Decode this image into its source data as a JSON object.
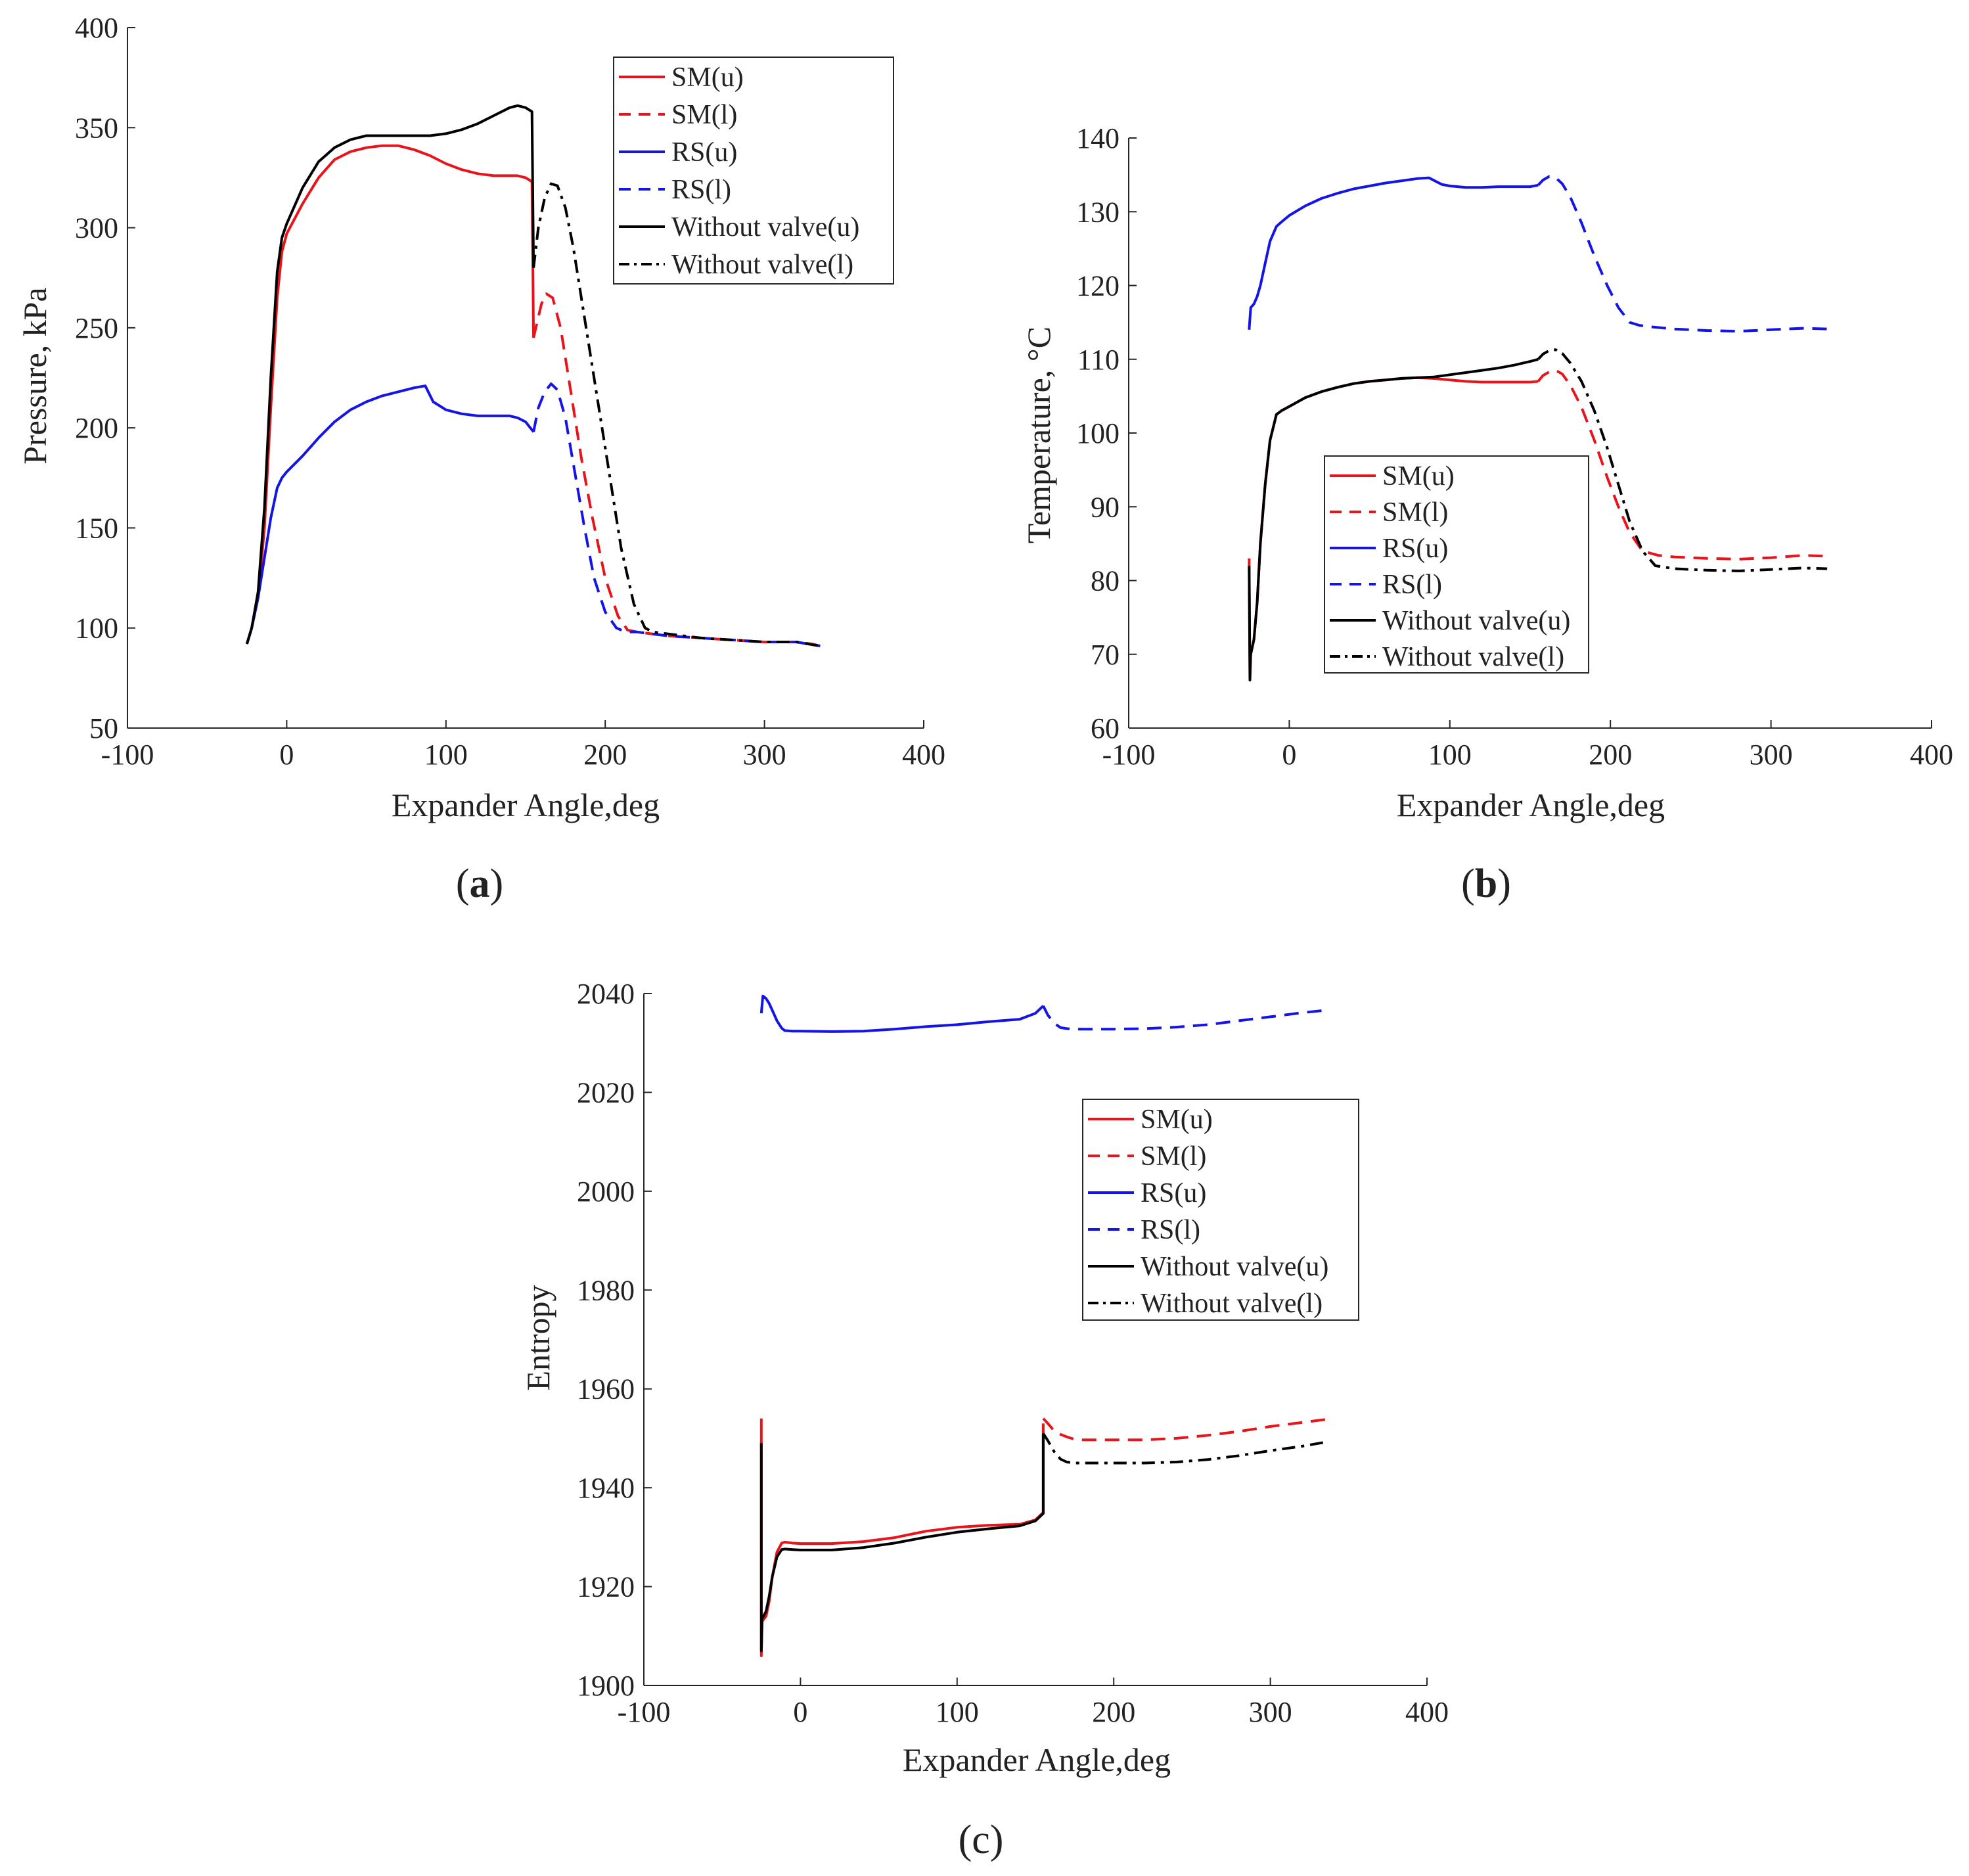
{
  "colors": {
    "SM": "#e8141b",
    "RS": "#1414e6",
    "WV": "#000000",
    "axis": "#262626"
  },
  "legend_entries": [
    {
      "name": "SM(u)",
      "color": "#e8141b",
      "dash": "solid"
    },
    {
      "name": "SM(l)",
      "color": "#e8141b",
      "dash": "dashed"
    },
    {
      "name": "RS(u)",
      "color": "#1414e6",
      "dash": "solid"
    },
    {
      "name": "RS(l)",
      "color": "#1414e6",
      "dash": "dashed"
    },
    {
      "name": "Without valve(u)",
      "color": "#000000",
      "dash": "solid"
    },
    {
      "name": "Without valve(l)",
      "color": "#000000",
      "dash": "dashdot"
    }
  ],
  "chart_data": [
    {
      "id": "a",
      "type": "line",
      "caption": "(a)",
      "caption_letter": "a",
      "xlabel": "Expander Angle,deg",
      "ylabel": "Pressure, kPa",
      "xlim": [
        -100,
        400
      ],
      "ylim": [
        50,
        400
      ],
      "xticks": [
        -100,
        0,
        100,
        200,
        300,
        400
      ],
      "yticks": [
        50,
        100,
        150,
        200,
        250,
        300,
        350,
        400
      ],
      "legend_position": "top-right",
      "series": [
        {
          "name": "SM(u)",
          "color": "#e8141b",
          "dash": "solid",
          "x": [
            -25,
            -22,
            -18,
            -14,
            -10,
            -6,
            -3,
            0,
            10,
            20,
            30,
            40,
            50,
            60,
            70,
            80,
            90,
            100,
            110,
            120,
            130,
            140,
            145,
            150,
            154,
            155
          ],
          "y": [
            92,
            100,
            115,
            150,
            210,
            265,
            288,
            297,
            312,
            325,
            334,
            338,
            340,
            341,
            341,
            339,
            336,
            332,
            329,
            327,
            326,
            326,
            326,
            325,
            323,
            245
          ]
        },
        {
          "name": "SM(l)",
          "color": "#e8141b",
          "dash": "dashed",
          "x": [
            155,
            157,
            160,
            163,
            167,
            172,
            178,
            185,
            192,
            200,
            208,
            214,
            220,
            230,
            240,
            260,
            280,
            300,
            320,
            330,
            335
          ],
          "y": [
            245,
            252,
            262,
            267,
            265,
            250,
            220,
            185,
            155,
            125,
            106,
            99,
            98,
            97,
            96,
            95,
            94,
            93,
            93,
            92,
            91
          ]
        },
        {
          "name": "RS(u)",
          "color": "#1414e6",
          "dash": "solid",
          "x": [
            -25,
            -22,
            -18,
            -14,
            -10,
            -6,
            -3,
            0,
            10,
            20,
            30,
            40,
            50,
            60,
            70,
            80,
            87,
            92,
            100,
            110,
            120,
            130,
            140,
            145,
            150,
            155
          ],
          "y": [
            92,
            100,
            115,
            135,
            155,
            170,
            175,
            178,
            186,
            195,
            203,
            209,
            213,
            216,
            218,
            220,
            221,
            213,
            209,
            207,
            206,
            206,
            206,
            205,
            203,
            198
          ]
        },
        {
          "name": "RS(l)",
          "color": "#1414e6",
          "dash": "dashed",
          "x": [
            155,
            158,
            162,
            166,
            170,
            175,
            180,
            187,
            193,
            200,
            207,
            213,
            220,
            230,
            240,
            260,
            280,
            300,
            320,
            335
          ],
          "y": [
            198,
            210,
            218,
            222,
            219,
            205,
            182,
            150,
            125,
            108,
            100,
            98,
            98,
            97,
            96,
            95,
            94,
            93,
            93,
            91
          ]
        },
        {
          "name": "Without valve(u)",
          "color": "#000000",
          "dash": "solid",
          "x": [
            -25,
            -22,
            -18,
            -14,
            -10,
            -6,
            -3,
            0,
            10,
            20,
            30,
            40,
            50,
            60,
            70,
            80,
            90,
            100,
            110,
            120,
            130,
            140,
            145,
            150,
            154,
            155
          ],
          "y": [
            92,
            100,
            118,
            160,
            225,
            278,
            295,
            302,
            320,
            333,
            340,
            344,
            346,
            346,
            346,
            346,
            346,
            347,
            349,
            352,
            356,
            360,
            361,
            360,
            358,
            280
          ]
        },
        {
          "name": "Without valve(l)",
          "color": "#000000",
          "dash": "dashdot",
          "x": [
            155,
            158,
            162,
            166,
            170,
            175,
            180,
            187,
            195,
            203,
            210,
            218,
            225,
            230,
            240,
            260,
            280,
            300,
            320,
            335
          ],
          "y": [
            280,
            300,
            315,
            322,
            321,
            310,
            290,
            255,
            215,
            175,
            140,
            112,
            100,
            98,
            97,
            95,
            94,
            93,
            93,
            91
          ]
        }
      ]
    },
    {
      "id": "b",
      "type": "line",
      "caption": "(b)",
      "caption_letter": "b",
      "xlabel": "Expander Angle,deg",
      "ylabel": "Temperature, °C",
      "xlim": [
        -100,
        400
      ],
      "ylim": [
        60,
        140
      ],
      "xticks": [
        -100,
        0,
        100,
        200,
        300,
        400
      ],
      "yticks": [
        60,
        70,
        80,
        90,
        100,
        110,
        120,
        130,
        140
      ],
      "legend_position": "bottom-center",
      "series": [
        {
          "name": "SM(u)",
          "color": "#e8141b",
          "dash": "solid",
          "x": [
            -25,
            -24.5,
            -24,
            -22,
            -20,
            -18,
            -15,
            -12,
            -8,
            -5,
            0,
            10,
            20,
            30,
            40,
            50,
            60,
            70,
            80,
            90,
            100,
            110,
            120,
            130,
            140,
            150,
            155
          ],
          "y": [
            83,
            67,
            70,
            72,
            77,
            85,
            93,
            99,
            102.5,
            103,
            103.6,
            104.8,
            105.6,
            106.2,
            106.7,
            107,
            107.2,
            107.4,
            107.5,
            107.4,
            107.2,
            107,
            106.9,
            106.9,
            106.9,
            106.9,
            107
          ]
        },
        {
          "name": "SM(l)",
          "color": "#e8141b",
          "dash": "dashed",
          "x": [
            155,
            158,
            162,
            166,
            170,
            175,
            182,
            190,
            198,
            205,
            212,
            220,
            230,
            240,
            260,
            280,
            300,
            320,
            335
          ],
          "y": [
            107,
            107.8,
            108.3,
            108.5,
            108,
            106.5,
            103.5,
            99,
            94,
            90,
            86.5,
            84,
            83.4,
            83.2,
            83,
            82.9,
            83.1,
            83.4,
            83.3
          ]
        },
        {
          "name": "RS(u)",
          "color": "#1414e6",
          "dash": "solid",
          "x": [
            -25,
            -24,
            -22,
            -20,
            -18,
            -15,
            -12,
            -8,
            -5,
            0,
            10,
            20,
            30,
            40,
            50,
            60,
            70,
            80,
            87,
            95,
            100,
            110,
            120,
            130,
            140,
            150,
            155
          ],
          "y": [
            114,
            117,
            117.5,
            118.5,
            120,
            123,
            126,
            128,
            128.6,
            129.5,
            130.8,
            131.8,
            132.5,
            133.1,
            133.5,
            133.9,
            134.2,
            134.5,
            134.6,
            133.7,
            133.5,
            133.3,
            133.3,
            133.4,
            133.4,
            133.4,
            133.6
          ]
        },
        {
          "name": "RS(l)",
          "color": "#1414e6",
          "dash": "dashed",
          "x": [
            155,
            158,
            162,
            166,
            170,
            175,
            182,
            190,
            198,
            205,
            212,
            218,
            225,
            240,
            260,
            280,
            300,
            320,
            335
          ],
          "y": [
            133.6,
            134.3,
            134.8,
            134.6,
            133.8,
            132,
            128.5,
            124,
            120,
            117,
            115,
            114.6,
            114.4,
            114.1,
            113.9,
            113.8,
            114,
            114.2,
            114.1
          ]
        },
        {
          "name": "Without valve(u)",
          "color": "#000000",
          "dash": "solid",
          "x": [
            -25,
            -24.5,
            -24,
            -22,
            -20,
            -18,
            -15,
            -12,
            -8,
            -5,
            0,
            10,
            20,
            30,
            40,
            50,
            60,
            70,
            80,
            90,
            100,
            110,
            120,
            130,
            140,
            150,
            155
          ],
          "y": [
            82,
            66.5,
            70,
            72,
            77,
            85,
            93,
            99,
            102.5,
            103,
            103.6,
            104.8,
            105.6,
            106.2,
            106.7,
            107,
            107.2,
            107.4,
            107.5,
            107.6,
            107.9,
            108.2,
            108.5,
            108.8,
            109.2,
            109.7,
            110
          ]
        },
        {
          "name": "Without valve(l)",
          "color": "#000000",
          "dash": "dashdot",
          "x": [
            155,
            158,
            162,
            166,
            170,
            175,
            182,
            190,
            198,
            205,
            212,
            220,
            228,
            240,
            260,
            280,
            300,
            320,
            335
          ],
          "y": [
            110,
            110.7,
            111.2,
            111.3,
            110.8,
            109.5,
            107,
            103,
            98,
            93,
            88,
            84,
            82,
            81.6,
            81.4,
            81.3,
            81.5,
            81.7,
            81.6
          ]
        }
      ]
    },
    {
      "id": "c",
      "type": "line",
      "caption": "(c)",
      "caption_letter": "c",
      "xlabel": "Expander Angle,deg",
      "ylabel": "Entropy",
      "xlim": [
        -100,
        400
      ],
      "ylim": [
        1900,
        2040
      ],
      "xticks": [
        -100,
        0,
        100,
        200,
        300,
        400
      ],
      "yticks": [
        1900,
        1920,
        1940,
        1960,
        1980,
        2000,
        2020,
        2040
      ],
      "legend_position": "top-right",
      "series": [
        {
          "name": "SM(u)",
          "color": "#e8141b",
          "dash": "solid",
          "x": [
            -25,
            -25,
            -24.5,
            -22,
            -20,
            -18,
            -15,
            -12,
            -10,
            -5,
            0,
            20,
            40,
            60,
            80,
            100,
            120,
            140,
            150,
            155,
            155
          ],
          "y": [
            1954,
            1906,
            1913,
            1914,
            1917,
            1922,
            1927,
            1928.8,
            1929,
            1928.8,
            1928.7,
            1928.7,
            1929.1,
            1929.9,
            1931.2,
            1932,
            1932.4,
            1932.6,
            1933.5,
            1935,
            1953
          ]
        },
        {
          "name": "SM(l)",
          "color": "#e8141b",
          "dash": "dashed",
          "x": [
            155,
            158,
            162,
            166,
            170,
            175,
            180,
            200,
            220,
            240,
            260,
            280,
            300,
            320,
            335
          ],
          "y": [
            1954,
            1953,
            1951.5,
            1950.8,
            1950.3,
            1949.8,
            1949.7,
            1949.7,
            1949.7,
            1950,
            1950.6,
            1951.4,
            1952.4,
            1953.2,
            1953.8
          ]
        },
        {
          "name": "RS(u)",
          "color": "#1414e6",
          "dash": "solid",
          "x": [
            -25,
            -24,
            -22,
            -20,
            -18,
            -15,
            -12,
            -10,
            -5,
            0,
            20,
            40,
            60,
            80,
            100,
            120,
            140,
            150,
            155
          ],
          "y": [
            2036,
            2039.5,
            2039,
            2038,
            2036.6,
            2034.5,
            2033,
            2032.5,
            2032.4,
            2032.4,
            2032.3,
            2032.4,
            2032.8,
            2033.3,
            2033.7,
            2034.3,
            2034.8,
            2036,
            2037.5
          ]
        },
        {
          "name": "RS(l)",
          "color": "#1414e6",
          "dash": "dashed",
          "x": [
            155,
            158,
            162,
            166,
            170,
            175,
            180,
            200,
            220,
            240,
            260,
            280,
            300,
            320,
            335
          ],
          "y": [
            2037.5,
            2035.6,
            2034,
            2033.1,
            2032.9,
            2032.8,
            2032.8,
            2032.8,
            2032.9,
            2033.2,
            2033.7,
            2034.5,
            2035.3,
            2036.1,
            2036.6
          ]
        },
        {
          "name": "Without valve(u)",
          "color": "#000000",
          "dash": "solid",
          "x": [
            -25,
            -25,
            -24.5,
            -22,
            -20,
            -18,
            -15,
            -12,
            -10,
            -5,
            0,
            20,
            40,
            60,
            80,
            100,
            120,
            140,
            150,
            155,
            155
          ],
          "y": [
            1949,
            1907,
            1913.5,
            1915,
            1918,
            1922,
            1926,
            1927.5,
            1927.6,
            1927.5,
            1927.4,
            1927.4,
            1927.9,
            1928.8,
            1930,
            1931,
            1931.7,
            1932.3,
            1933.3,
            1934.8,
            1951
          ]
        },
        {
          "name": "Without valve(l)",
          "color": "#000000",
          "dash": "dashdot",
          "x": [
            155,
            158,
            162,
            166,
            170,
            175,
            180,
            200,
            220,
            240,
            260,
            280,
            300,
            320,
            335
          ],
          "y": [
            1951,
            1949.5,
            1947.3,
            1945.8,
            1945.2,
            1945,
            1945,
            1945,
            1945,
            1945.2,
            1945.7,
            1946.5,
            1947.5,
            1948.4,
            1949.2
          ]
        }
      ]
    }
  ]
}
